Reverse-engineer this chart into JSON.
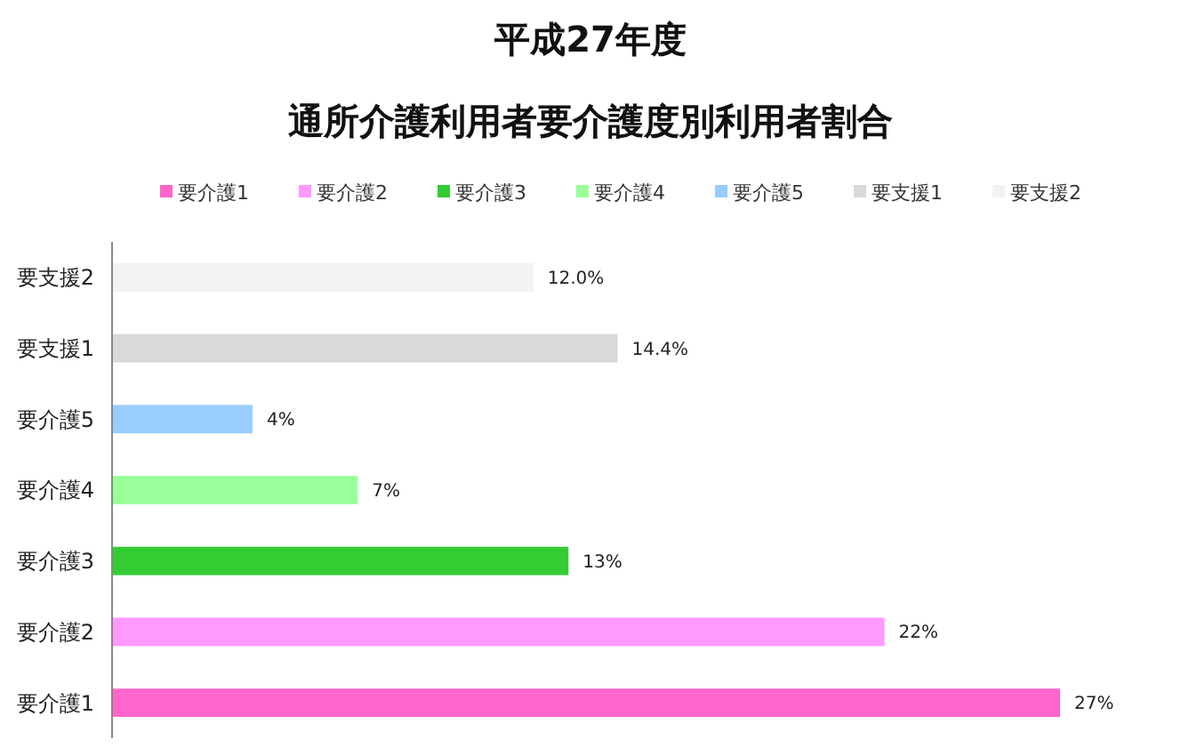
{
  "chart_data": {
    "type": "bar",
    "orientation": "horizontal",
    "stacked": true,
    "title": "平成27年度",
    "subtitle": "通所介護利用者要介護度別利用者割合",
    "categories": [
      "要支援2",
      "要支援1",
      "要介護5",
      "要介護4",
      "要介護3",
      "要介護2",
      "要介護1"
    ],
    "series": [
      {
        "name": "要介護1",
        "color": "#ff66cc",
        "values": [
          null,
          null,
          null,
          null,
          null,
          null,
          27
        ],
        "value_labels": [
          null,
          null,
          null,
          null,
          null,
          null,
          "27%"
        ]
      },
      {
        "name": "要介護2",
        "color": "#ff99ff",
        "values": [
          null,
          null,
          null,
          null,
          null,
          22,
          null
        ],
        "value_labels": [
          null,
          null,
          null,
          null,
          null,
          "22%",
          null
        ]
      },
      {
        "name": "要介護3",
        "color": "#33cc33",
        "values": [
          null,
          null,
          null,
          null,
          13,
          null,
          null
        ],
        "value_labels": [
          null,
          null,
          null,
          null,
          "13%",
          null,
          null
        ]
      },
      {
        "name": "要介護4",
        "color": "#99ff99",
        "values": [
          null,
          null,
          null,
          7,
          null,
          null,
          null
        ],
        "value_labels": [
          null,
          null,
          null,
          "7%",
          null,
          null,
          null
        ]
      },
      {
        "name": "要介護5",
        "color": "#99ccff",
        "values": [
          null,
          null,
          4,
          null,
          null,
          null,
          null
        ],
        "value_labels": [
          null,
          null,
          "4%",
          null,
          null,
          null,
          null
        ]
      },
      {
        "name": "要支援1",
        "color": "#d9d9d9",
        "values": [
          null,
          14.4,
          null,
          null,
          null,
          null,
          null
        ],
        "value_labels": [
          null,
          "14.4%",
          null,
          null,
          null,
          null,
          null
        ]
      },
      {
        "name": "要支援2",
        "color": "#f2f2f2",
        "values": [
          12.0,
          null,
          null,
          null,
          null,
          null,
          null
        ],
        "value_labels": [
          "12.0%",
          null,
          null,
          null,
          null,
          null,
          null
        ]
      }
    ],
    "legend": "top"
  }
}
